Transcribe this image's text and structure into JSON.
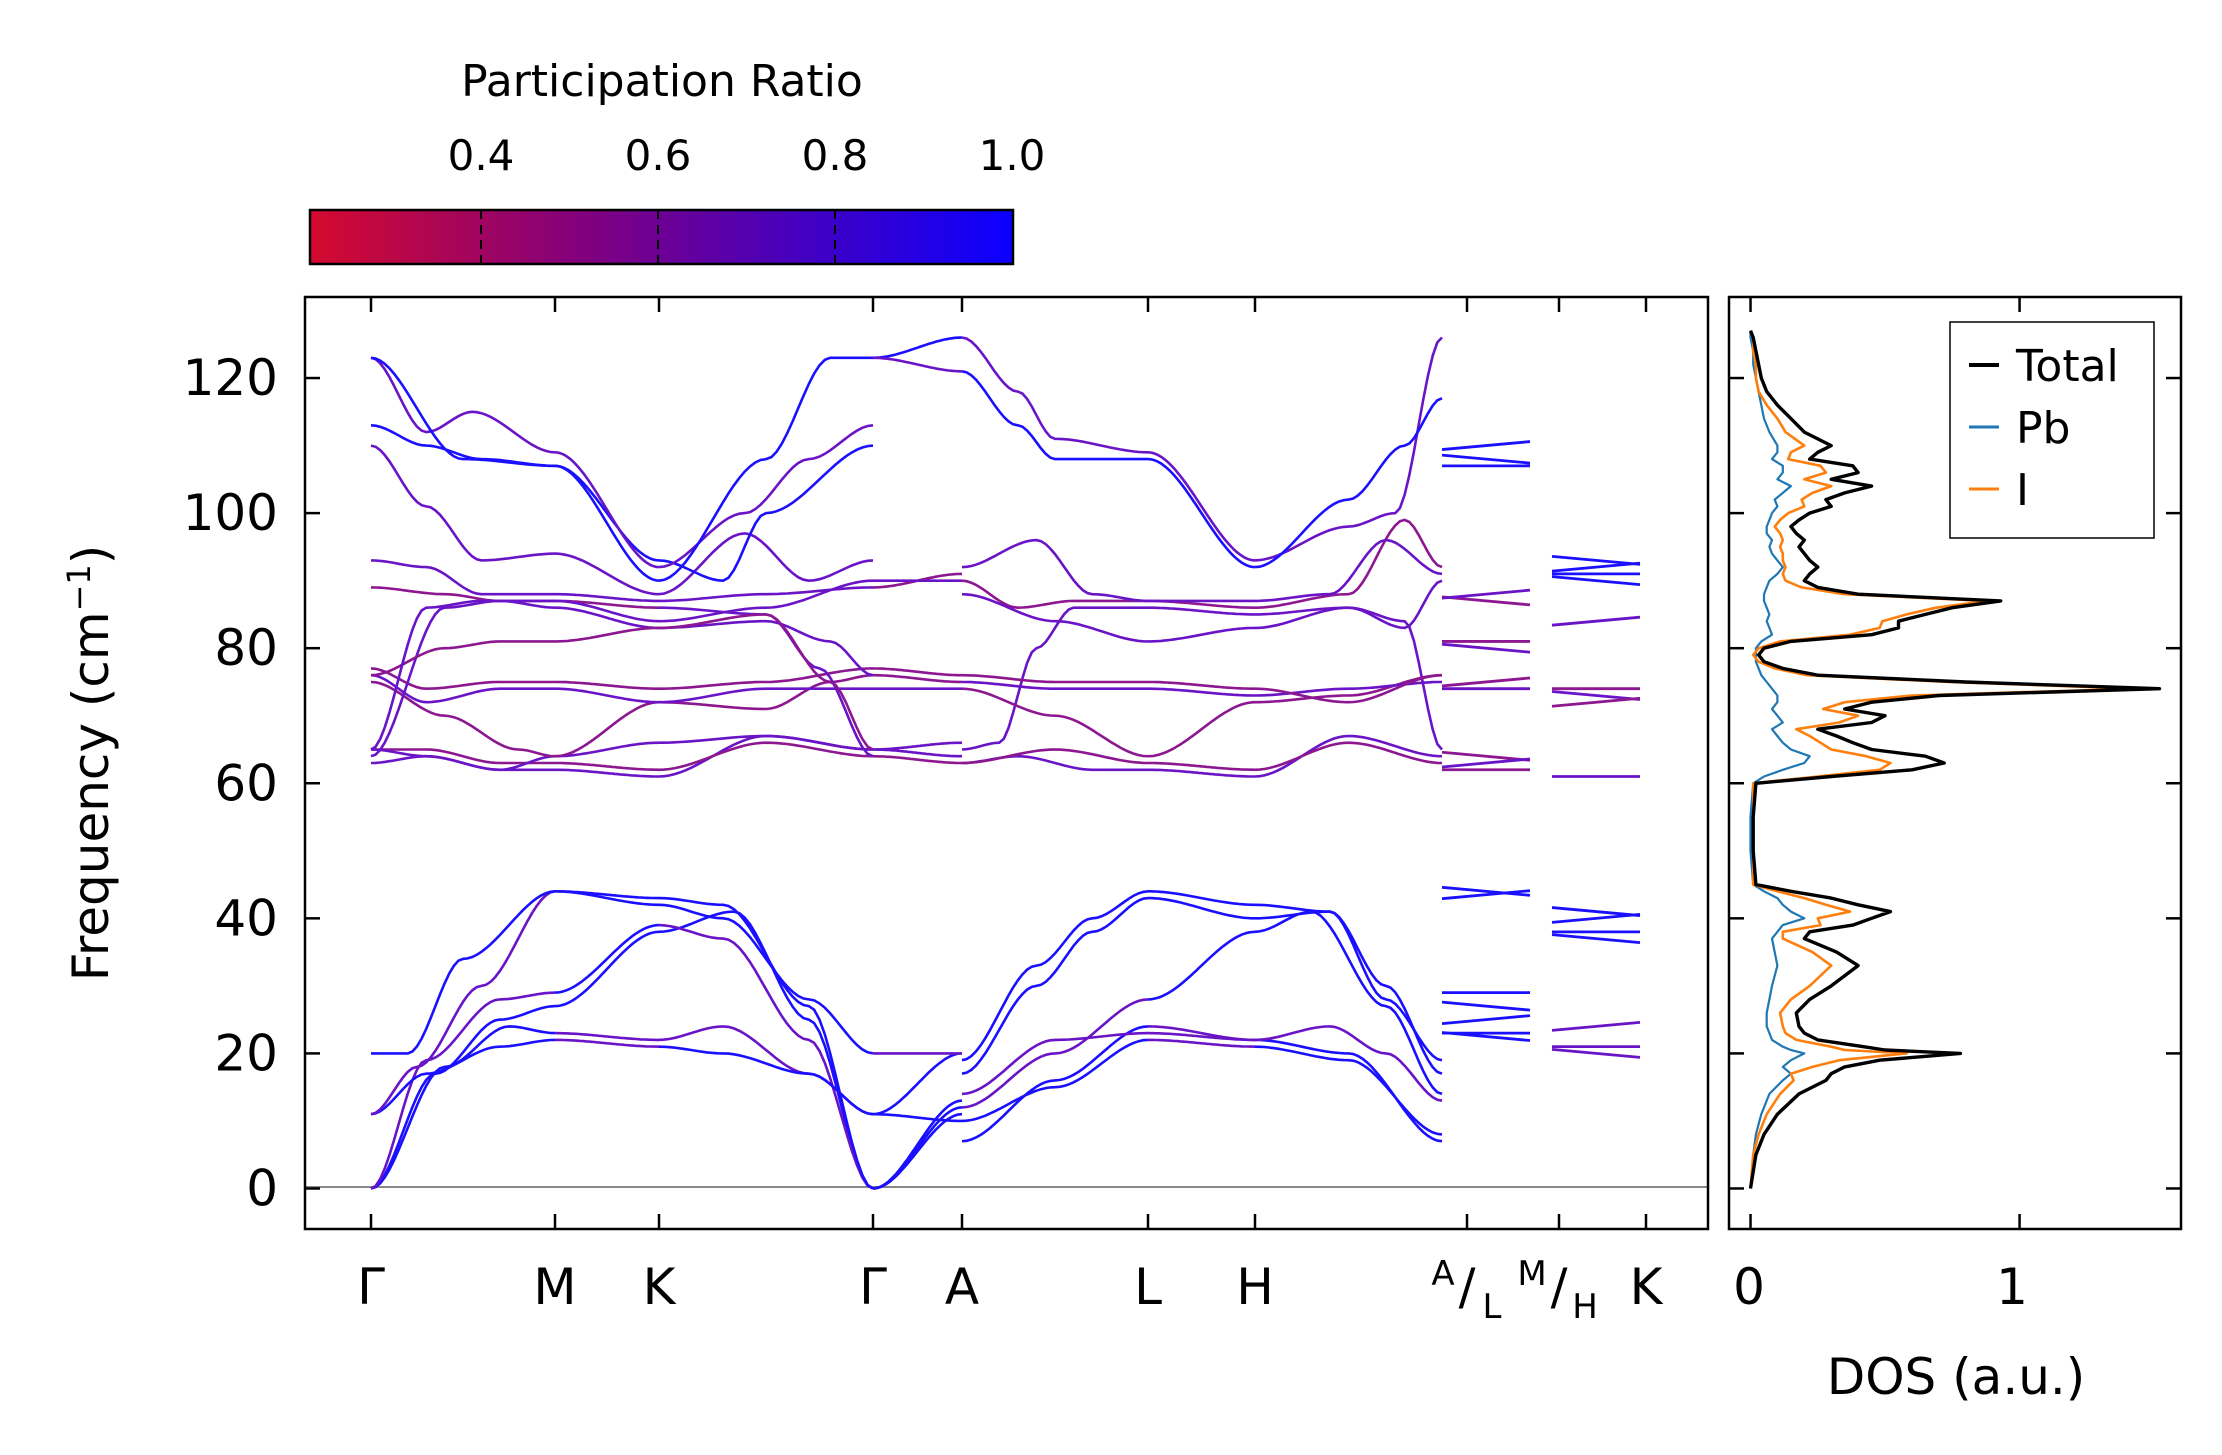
{
  "colorbar": {
    "label": "Participation Ratio",
    "range": [
      0.2,
      1.0
    ],
    "ticks": [
      "0.4",
      "0.6",
      "0.8",
      "1.0"
    ],
    "colors": [
      "#d40a2e",
      "#7f0080",
      "#0a00ff"
    ]
  },
  "chart_data": [
    {
      "type": "line",
      "title": "",
      "ylabel": "Frequency (cm⁻¹)",
      "ylim": [
        -6,
        132
      ],
      "yticks": [
        "0",
        "20",
        "40",
        "60",
        "80",
        "100",
        "120"
      ],
      "xticks": [
        "Γ",
        "M",
        "K",
        "Γ",
        "A",
        "L",
        "H",
        "A/L",
        "M/H",
        "K"
      ],
      "kpoint_labels": {
        "gamma": "Γ",
        "m": "M",
        "k": "K",
        "a": "A",
        "l": "L",
        "h": "H",
        "a_sub": "A",
        "l_sub": "L",
        "m_sub": "M",
        "h_sub": "H",
        "slash": "/"
      },
      "segments": [
        "Γ-M",
        "M-K",
        "K-Γ",
        "Γ-A",
        "A-L",
        "L-H",
        "H-A",
        "L-M",
        "H-K"
      ],
      "acoustic_band_range": [
        0,
        44
      ],
      "optical_band_range": [
        61,
        126
      ],
      "max_frequency": 126
    },
    {
      "type": "line",
      "xlabel": "DOS (a.u.)",
      "xlim": [
        -0.08,
        1.6
      ],
      "xticks": [
        "0",
        "1"
      ],
      "ylim": [
        -6,
        132
      ],
      "legend": {
        "position": "top-right",
        "entries": [
          "Total",
          "Pb",
          "I"
        ]
      },
      "series": [
        {
          "name": "Total",
          "color": "#000000",
          "y": [
            0,
            5,
            8,
            11,
            14,
            16,
            17,
            18,
            19,
            20,
            20.5,
            21,
            22,
            23,
            24,
            26,
            28,
            30,
            33,
            35,
            37,
            38,
            39,
            40,
            41,
            42,
            43,
            44,
            45,
            50,
            55,
            60,
            61,
            62,
            63,
            64,
            65,
            66,
            67,
            68,
            69,
            70,
            71,
            72,
            73,
            74,
            75,
            76,
            77,
            78,
            79,
            80,
            81,
            82,
            83,
            84,
            85,
            86,
            87,
            88,
            89,
            90,
            91,
            92,
            93,
            94,
            95,
            96,
            97,
            98,
            99,
            100,
            101,
            102,
            103,
            104,
            105,
            106,
            107,
            108,
            109,
            110,
            112,
            114,
            116,
            118,
            120,
            122,
            124,
            126,
            127
          ],
          "values": [
            0,
            0.02,
            0.05,
            0.1,
            0.18,
            0.28,
            0.3,
            0.35,
            0.48,
            0.78,
            0.5,
            0.42,
            0.25,
            0.2,
            0.18,
            0.17,
            0.22,
            0.3,
            0.4,
            0.32,
            0.2,
            0.22,
            0.38,
            0.45,
            0.52,
            0.4,
            0.3,
            0.15,
            0.02,
            0.01,
            0.01,
            0.02,
            0.3,
            0.6,
            0.72,
            0.65,
            0.45,
            0.38,
            0.32,
            0.25,
            0.45,
            0.5,
            0.35,
            0.45,
            0.7,
            1.52,
            0.8,
            0.25,
            0.12,
            0.05,
            0.03,
            0.05,
            0.15,
            0.45,
            0.55,
            0.55,
            0.65,
            0.75,
            0.93,
            0.4,
            0.25,
            0.2,
            0.22,
            0.25,
            0.22,
            0.2,
            0.18,
            0.2,
            0.17,
            0.15,
            0.18,
            0.22,
            0.3,
            0.28,
            0.35,
            0.45,
            0.3,
            0.4,
            0.38,
            0.22,
            0.25,
            0.3,
            0.2,
            0.15,
            0.1,
            0.06,
            0.04,
            0.03,
            0.02,
            0.01,
            0
          ]
        },
        {
          "name": "Pb",
          "color": "#1f77b4",
          "y": [
            0,
            5,
            8,
            11,
            14,
            16,
            17,
            18,
            19,
            20,
            20.5,
            21,
            22,
            23,
            24,
            26,
            28,
            30,
            33,
            35,
            37,
            38,
            39,
            40,
            41,
            42,
            43,
            44,
            45,
            50,
            55,
            60,
            61,
            62,
            63,
            64,
            65,
            66,
            67,
            68,
            69,
            70,
            71,
            72,
            73,
            74,
            75,
            76,
            77,
            78,
            79,
            80,
            81,
            82,
            83,
            84,
            85,
            86,
            87,
            88,
            89,
            90,
            91,
            92,
            93,
            94,
            95,
            96,
            97,
            98,
            99,
            100,
            101,
            102,
            103,
            104,
            105,
            106,
            107,
            108,
            109,
            110,
            112,
            114,
            116,
            118,
            120,
            122,
            124,
            126,
            127
          ],
          "values": [
            0,
            0.01,
            0.02,
            0.04,
            0.07,
            0.12,
            0.15,
            0.12,
            0.15,
            0.2,
            0.15,
            0.12,
            0.08,
            0.07,
            0.06,
            0.06,
            0.07,
            0.08,
            0.1,
            0.09,
            0.08,
            0.1,
            0.12,
            0.2,
            0.15,
            0.12,
            0.1,
            0.05,
            0.01,
            0,
            0,
            0.01,
            0.05,
            0.12,
            0.2,
            0.22,
            0.15,
            0.12,
            0.1,
            0.08,
            0.12,
            0.1,
            0.08,
            0.1,
            0.1,
            0.08,
            0.06,
            0.04,
            0.03,
            0.02,
            0.02,
            0.02,
            0.04,
            0.08,
            0.07,
            0.06,
            0.07,
            0.06,
            0.05,
            0.05,
            0.06,
            0.07,
            0.1,
            0.12,
            0.1,
            0.08,
            0.07,
            0.08,
            0.06,
            0.06,
            0.07,
            0.08,
            0.1,
            0.09,
            0.12,
            0.15,
            0.1,
            0.12,
            0.12,
            0.08,
            0.1,
            0.1,
            0.07,
            0.05,
            0.04,
            0.03,
            0.02,
            0.01,
            0.01,
            0,
            0
          ]
        },
        {
          "name": "I",
          "color": "#ff7f0e",
          "y": [
            0,
            5,
            8,
            11,
            14,
            16,
            17,
            18,
            19,
            20,
            20.5,
            21,
            22,
            23,
            24,
            26,
            28,
            30,
            33,
            35,
            37,
            38,
            39,
            40,
            41,
            42,
            43,
            44,
            45,
            50,
            55,
            60,
            61,
            62,
            63,
            64,
            65,
            66,
            67,
            68,
            69,
            70,
            71,
            72,
            73,
            74,
            75,
            76,
            77,
            78,
            79,
            80,
            81,
            82,
            83,
            84,
            85,
            86,
            87,
            88,
            89,
            90,
            91,
            92,
            93,
            94,
            95,
            96,
            97,
            98,
            99,
            100,
            101,
            102,
            103,
            104,
            105,
            106,
            107,
            108,
            109,
            110,
            112,
            114,
            116,
            118,
            120,
            122,
            124,
            126,
            127
          ],
          "values": [
            0,
            0.01,
            0.03,
            0.06,
            0.11,
            0.16,
            0.15,
            0.23,
            0.33,
            0.58,
            0.35,
            0.3,
            0.17,
            0.13,
            0.12,
            0.11,
            0.15,
            0.22,
            0.3,
            0.23,
            0.12,
            0.12,
            0.26,
            0.25,
            0.37,
            0.28,
            0.2,
            0.1,
            0.01,
            0.01,
            0.01,
            0.01,
            0.25,
            0.48,
            0.52,
            0.43,
            0.3,
            0.26,
            0.22,
            0.17,
            0.33,
            0.4,
            0.27,
            0.35,
            0.6,
            1.44,
            0.74,
            0.21,
            0.09,
            0.03,
            0.01,
            0.03,
            0.11,
            0.37,
            0.48,
            0.49,
            0.58,
            0.69,
            0.88,
            0.35,
            0.19,
            0.13,
            0.12,
            0.13,
            0.12,
            0.12,
            0.11,
            0.12,
            0.11,
            0.09,
            0.11,
            0.14,
            0.2,
            0.19,
            0.23,
            0.3,
            0.2,
            0.28,
            0.26,
            0.14,
            0.15,
            0.2,
            0.13,
            0.1,
            0.06,
            0.03,
            0.02,
            0.02,
            0.01,
            0.01,
            0
          ]
        }
      ]
    }
  ]
}
